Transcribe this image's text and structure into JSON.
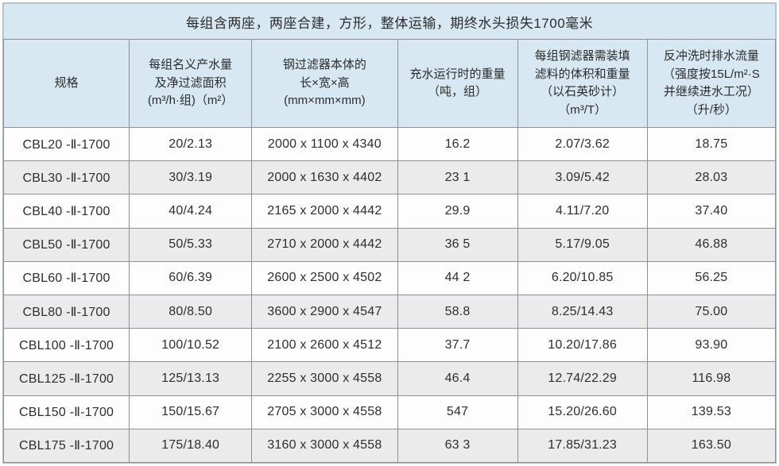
{
  "table": {
    "title": "每组含两座，两座合建，方形，整体运输，期终水头损失1700毫米",
    "columns": [
      {
        "id": "spec",
        "lines": [
          "规格"
        ]
      },
      {
        "id": "capacity-area",
        "lines": [
          "每组名义产水量",
          "及净过滤面积",
          "(m³/h·组)（m²）"
        ]
      },
      {
        "id": "dimensions",
        "lines": [
          "钢过滤器本体的",
          "长×宽×高",
          "(mm×mm×mm)"
        ]
      },
      {
        "id": "filled-weight",
        "lines": [
          "充水运行时的重量",
          "（吨，组）"
        ]
      },
      {
        "id": "media-volume-weight",
        "lines": [
          "每组钢滤器需装填",
          "滤料的体积和重量",
          "（以石英砂计）",
          "（m³/T）"
        ]
      },
      {
        "id": "backwash-flow",
        "lines": [
          "反冲洗时排水流量",
          "（强度按15L/m²·S",
          "并继续进水工况）",
          "（升/秒）"
        ]
      }
    ],
    "rows": [
      [
        "CBL20 -Ⅱ-1700",
        "20/2.13",
        "2000 x 1100 x 4340",
        "16.2",
        "2.07/3.62",
        "18.75"
      ],
      [
        "CBL30 -Ⅱ-1700",
        "30/3.19",
        "2000 x 1630 x 4402",
        "23 1",
        "3.09/5.42",
        "28.03"
      ],
      [
        "CBL40 -Ⅱ-1700",
        "40/4.24",
        "2165 x 2000 x 4442",
        "29.9",
        "4.11/7.20",
        "37.40"
      ],
      [
        "CBL50 -Ⅱ-1700",
        "50/5.33",
        "2710 x 2000 x 4442",
        "36 5",
        "5.17/9.05",
        "46.88"
      ],
      [
        "CBL60 -Ⅱ-1700",
        "60/6.39",
        "2600 x 2500 x 4502",
        "44 2",
        "6.20/10.85",
        "56.25"
      ],
      [
        "CBL80 -Ⅱ-1700",
        "80/8.50",
        "3600 x 2900 x 4547",
        "58.8",
        "8.25/14.43",
        "75.00"
      ],
      [
        "CBL100 -Ⅱ-1700",
        "100/10.52",
        "2100 x 2600 x 4512",
        "37.7",
        "10.20/17.86",
        "93.90"
      ],
      [
        "CBL125 -Ⅱ-1700",
        "125/13.13",
        "2255 x 3000 x 4558",
        "46.4",
        "12.74/22.29",
        "116.98"
      ],
      [
        "CBL150 -Ⅱ-1700",
        "150/15.67",
        "2705 x 3000 x 4558",
        "547",
        "15.20/26.60",
        "139.53"
      ],
      [
        "CBL175 -Ⅱ-1700",
        "175/18.40",
        "3160 x 3000 x 4558",
        "63 3",
        "17.85/31.23",
        "163.50"
      ]
    ],
    "colors": {
      "header_bg": "#d7e8f2",
      "zebra_bg": "#ebebeb",
      "row_bg": "#fdfdfd",
      "border": "#8b9197",
      "text": "#2e2e2e"
    }
  }
}
